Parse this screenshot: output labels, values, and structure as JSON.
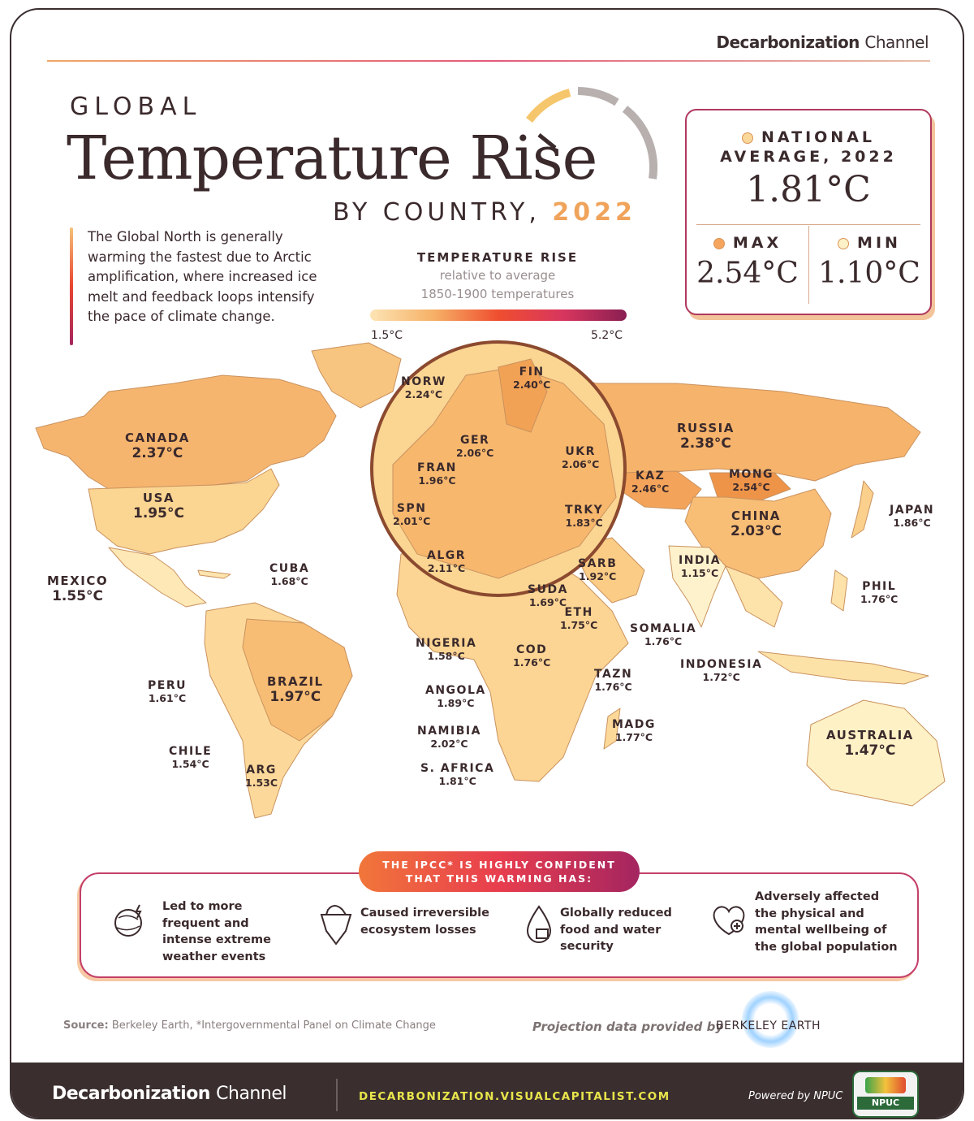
{
  "header": {
    "brand_bold": "Decarbonization",
    "brand_thin": "Channel"
  },
  "title": {
    "pre": "GLOBAL",
    "main": "Temperature Rise",
    "sub": "BY COUNTRY,",
    "year": "2022"
  },
  "intro": "The Global North is generally warming the fastest due to Arctic amplification, where increased ice melt and feedback loops intensify the pace of climate change.",
  "legend": {
    "title": "TEMPERATURE RISE",
    "sub1": "relative to average",
    "sub2": "1850-1900 temperatures",
    "min": "1.5°C",
    "max": "5.2°C"
  },
  "stats": {
    "avg_label1": "NATIONAL",
    "avg_label2": "AVERAGE, 2022",
    "avg_value": "1.81°C",
    "max_label": "MAX",
    "max_value": "2.54°C",
    "min_label": "MIN",
    "min_value": "1.10°C"
  },
  "countries": [
    {
      "name": "CANADA",
      "value": "2.37°C"
    },
    {
      "name": "USA",
      "value": "1.95°C"
    },
    {
      "name": "MEXICO",
      "value": "1.55°C"
    },
    {
      "name": "CUBA",
      "value": "1.68°C"
    },
    {
      "name": "PERU",
      "value": "1.61°C"
    },
    {
      "name": "BRAZIL",
      "value": "1.97°C"
    },
    {
      "name": "CHILE",
      "value": "1.54°C"
    },
    {
      "name": "ARG",
      "value": "1.53C"
    },
    {
      "name": "NORW",
      "value": "2.24°C"
    },
    {
      "name": "FIN",
      "value": "2.40°C"
    },
    {
      "name": "GER",
      "value": "2.06°C"
    },
    {
      "name": "FRAN",
      "value": "1.96°C"
    },
    {
      "name": "UKR",
      "value": "2.06°C"
    },
    {
      "name": "SPN",
      "value": "2.01°C"
    },
    {
      "name": "TRKY",
      "value": "1.83°C"
    },
    {
      "name": "ALGR",
      "value": "2.11°C"
    },
    {
      "name": "RUSSIA",
      "value": "2.38°C"
    },
    {
      "name": "KAZ",
      "value": "2.46°C"
    },
    {
      "name": "MONG",
      "value": "2.54°C"
    },
    {
      "name": "CHINA",
      "value": "2.03°C"
    },
    {
      "name": "JAPAN",
      "value": "1.86°C"
    },
    {
      "name": "INDIA",
      "value": "1.15°C"
    },
    {
      "name": "SARB",
      "value": "1.92°C"
    },
    {
      "name": "PHIL",
      "value": "1.76°C"
    },
    {
      "name": "SUDA",
      "value": "1.69°C"
    },
    {
      "name": "ETH",
      "value": "1.75°C"
    },
    {
      "name": "SOMALIA",
      "value": "1.76°C"
    },
    {
      "name": "NIGERIA",
      "value": "1.58°C"
    },
    {
      "name": "COD",
      "value": "1.76°C"
    },
    {
      "name": "INDONESIA",
      "value": "1.72°C"
    },
    {
      "name": "TAZN",
      "value": "1.76°C"
    },
    {
      "name": "ANGOLA",
      "value": "1.89°C"
    },
    {
      "name": "NAMIBIA",
      "value": "2.02°C"
    },
    {
      "name": "MADG",
      "value": "1.77°C"
    },
    {
      "name": "S. AFRICA",
      "value": "1.81°C"
    },
    {
      "name": "AUSTRALIA",
      "value": "1.47°C"
    }
  ],
  "ipcc": {
    "pill_pre": "THE IPCC* IS",
    "pill_strong": "HIGHLY CONFIDENT",
    "pill_line2": "THAT THIS WARMING HAS:",
    "impacts": [
      {
        "icon": "extreme-weather-icon",
        "text": "Led to more frequent and intense extreme weather events"
      },
      {
        "icon": "ecosystem-loss-icon",
        "text": "Caused irreversible ecosystem losses"
      },
      {
        "icon": "water-food-security-icon",
        "text": "Globally reduced food and water security"
      },
      {
        "icon": "wellbeing-heart-icon",
        "text": "Adversely affected the physical and mental wellbeing of the global population"
      }
    ]
  },
  "source": {
    "label": "Source:",
    "text": "Berkeley Earth, *Intergovernmental Panel on Climate Change"
  },
  "projection": {
    "text": "Projection data provided by",
    "logo": "BERKELEY EARTH"
  },
  "footer": {
    "brand_bold": "Decarbonization",
    "brand_thin": "Channel",
    "url": "DECARBONIZATION.VISUALCAPITALIST.COM",
    "powered": "Powered by NPUC",
    "npuc": "NPUC"
  }
}
